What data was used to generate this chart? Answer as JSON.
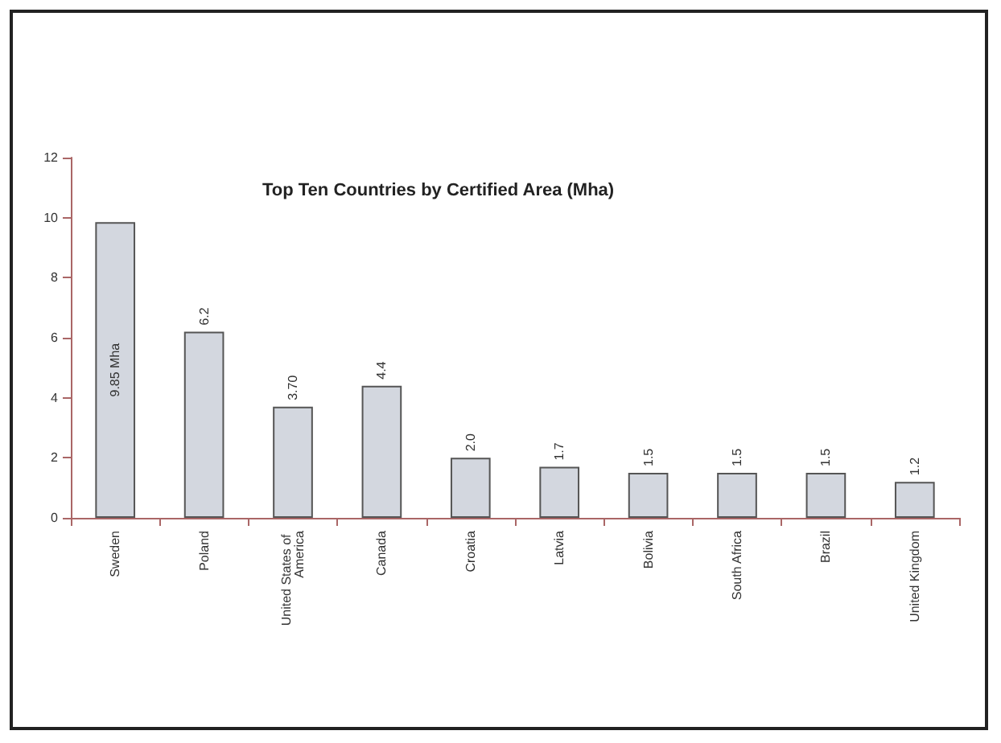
{
  "chart_data": {
    "type": "bar",
    "title": "Top Ten Countries by Certified Area (Mha)",
    "categories": [
      "Sweden",
      "Poland",
      "United States of America",
      "Canada",
      "Croatia",
      "Latvia",
      "Bolivia",
      "South Africa",
      "Brazil",
      "United Kingdom"
    ],
    "values": [
      9.85,
      6.2,
      3.7,
      4.4,
      2.0,
      1.7,
      1.5,
      1.5,
      1.5,
      1.2
    ],
    "value_labels": [
      "9.85 Mha",
      "6.2",
      "3.70",
      "4.4",
      "2.0",
      "1.7",
      "1.5",
      "1.5",
      "1.5",
      "1.2"
    ],
    "color": "#d3d7df",
    "ylim": [
      0,
      12
    ],
    "yticks": [
      0,
      2,
      4,
      6,
      8,
      10,
      12
    ],
    "grid": false
  }
}
